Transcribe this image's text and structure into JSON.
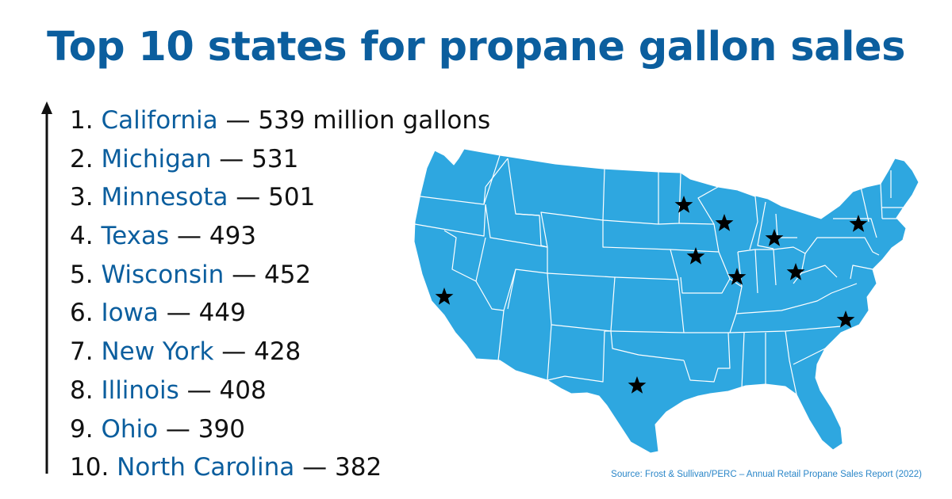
{
  "title": "Top 10 states for propane gallon sales",
  "rankings": [
    {
      "rank": "1.",
      "state": "California",
      "value": "539 million gallons"
    },
    {
      "rank": "2.",
      "state": "Michigan",
      "value": "531"
    },
    {
      "rank": "3.",
      "state": "Minnesota",
      "value": "501"
    },
    {
      "rank": "4.",
      "state": "Texas",
      "value": "493"
    },
    {
      "rank": "5.",
      "state": "Wisconsin",
      "value": "452"
    },
    {
      "rank": "6.",
      "state": "Iowa",
      "value": "449"
    },
    {
      "rank": "7.",
      "state": "New York",
      "value": "428"
    },
    {
      "rank": "8.",
      "state": "Illinois",
      "value": "408"
    },
    {
      "rank": "9.",
      "state": "Ohio",
      "value": "390"
    },
    {
      "rank": "10.",
      "state": "North Carolina",
      "value": "382"
    }
  ],
  "separator": " — ",
  "source": "Source: Frost & Sullivan/PERC – Annual Retail Propane Sales Report (2022)",
  "map": {
    "fill_color": "#2ea7e0",
    "border_color": "#ffffff",
    "marker_icon": "star-icon",
    "marker_color": "#000000",
    "starred_states": [
      "California",
      "Michigan",
      "Minnesota",
      "Texas",
      "Wisconsin",
      "Iowa",
      "New York",
      "Illinois",
      "Ohio",
      "North Carolina"
    ]
  },
  "colors": {
    "title": "#0b5e9e",
    "state_name": "#0b5e9e",
    "text": "#111111",
    "source": "#2a86c8"
  }
}
